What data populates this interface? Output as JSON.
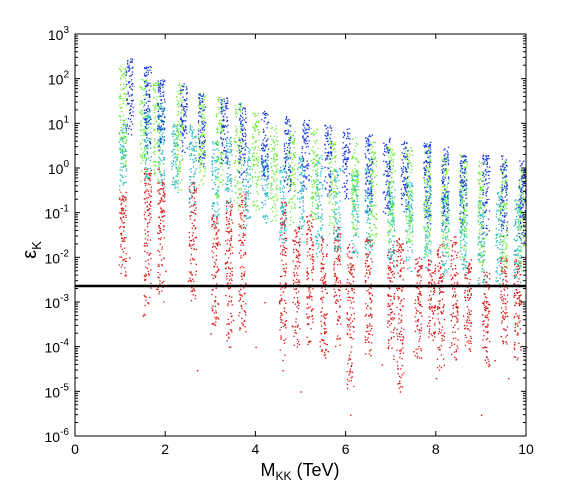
{
  "chart_data": {
    "type": "scatter",
    "title": "",
    "xlabel": {
      "main": "M",
      "sub": "KK",
      "rest": " (TeV)"
    },
    "ylabel": {
      "main": "ε",
      "sub": "K"
    },
    "xlim": [
      0,
      10
    ],
    "ylim": [
      1e-06,
      1000
    ],
    "yscale": "log",
    "grid": false,
    "legend": "none",
    "x_ticks": [
      0,
      2,
      4,
      6,
      8,
      10
    ],
    "x_tick_labels": [
      "0",
      "2",
      "4",
      "6",
      "8",
      "10"
    ],
    "y_ticks": [
      1e-06,
      1e-05,
      0.0001,
      0.001,
      0.01,
      0.1,
      1,
      10,
      100,
      1000
    ],
    "y_tick_labels": [
      {
        "base": "10",
        "exp": "-6"
      },
      {
        "base": "10",
        "exp": "-5"
      },
      {
        "base": "10",
        "exp": "-4"
      },
      {
        "base": "10",
        "exp": "-3"
      },
      {
        "base": "10",
        "exp": "-2"
      },
      {
        "base": "10",
        "exp": "-1"
      },
      {
        "base": "10",
        "exp": "0"
      },
      {
        "base": "10",
        "exp": "1"
      },
      {
        "base": "10",
        "exp": "2"
      },
      {
        "base": "10",
        "exp": "3"
      }
    ],
    "reference_line": {
      "y": 0.00228,
      "color": "#000000"
    },
    "series": [
      {
        "color": "#dd1111",
        "points": [
          [
            1.05,
            0.05
          ],
          [
            1.1,
            0.004
          ],
          [
            1.2,
            0.01
          ],
          [
            1.5,
            0.0005
          ],
          [
            1.6,
            0.001
          ],
          [
            1.8,
            0.002
          ],
          [
            2.0,
            0.005
          ],
          [
            2.5,
            0.003
          ],
          [
            2.7,
            3e-05
          ],
          [
            3.0,
            0.0002
          ],
          [
            3.2,
            0.02
          ],
          [
            3.5,
            0.0004
          ],
          [
            4.0,
            0.0001
          ],
          [
            4.2,
            0.001
          ],
          [
            4.6,
            3e-05
          ],
          [
            4.8,
            0.0003
          ],
          [
            5.0,
            1e-05
          ],
          [
            5.2,
            0.0008
          ],
          [
            5.6,
            8e-05
          ],
          [
            6.0,
            0.002
          ],
          [
            6.1,
            3e-06
          ],
          [
            6.5,
            0.0002
          ],
          [
            6.8,
            4e-05
          ],
          [
            7.0,
            0.0006
          ],
          [
            7.2,
            1e-05
          ],
          [
            7.5,
            8e-05
          ],
          [
            7.8,
            0.0003
          ],
          [
            8.0,
            2e-05
          ],
          [
            8.3,
            0.0001
          ],
          [
            8.6,
            0.0005
          ],
          [
            9.0,
            3e-06
          ],
          [
            9.3,
            5e-05
          ],
          [
            9.6,
            2e-05
          ],
          [
            9.8,
            0.0003
          ],
          [
            10.0,
            0.0001
          ]
        ],
        "columns": [
          [
            1.05,
            0.004,
            0.3
          ],
          [
            1.6,
            0.0005,
            1.0
          ],
          [
            1.9,
            0.001,
            1.0
          ],
          [
            2.6,
            0.001,
            0.5
          ],
          [
            3.1,
            0.0003,
            0.1
          ],
          [
            3.4,
            0.0001,
            0.2
          ],
          [
            3.7,
            0.0002,
            0.3
          ],
          [
            4.6,
            5e-05,
            0.2
          ],
          [
            4.9,
            0.0001,
            0.05
          ],
          [
            5.2,
            0.0001,
            0.1
          ],
          [
            5.5,
            5e-05,
            0.03
          ],
          [
            5.8,
            0.0001,
            0.05
          ],
          [
            6.1,
            1e-05,
            0.02
          ],
          [
            6.5,
            5e-05,
            0.03
          ],
          [
            7.0,
            5e-05,
            0.02
          ],
          [
            7.2,
            1e-05,
            0.03
          ],
          [
            7.6,
            5e-05,
            0.01
          ],
          [
            7.9,
            0.0001,
            0.01
          ],
          [
            8.1,
            3e-05,
            0.02
          ],
          [
            8.4,
            5e-05,
            0.03
          ],
          [
            8.7,
            8e-05,
            0.01
          ],
          [
            9.1,
            3e-05,
            0.005
          ],
          [
            9.5,
            0.0001,
            0.01
          ],
          [
            9.8,
            5e-05,
            0.01
          ]
        ]
      },
      {
        "color": "#22bbbb",
        "columns": [
          [
            1.05,
            0.3,
            10
          ],
          [
            1.6,
            0.5,
            20
          ],
          [
            1.9,
            0.3,
            30
          ],
          [
            2.2,
            0.2,
            10
          ],
          [
            2.6,
            0.1,
            10
          ],
          [
            3.1,
            0.05,
            5
          ],
          [
            3.4,
            0.1,
            5
          ],
          [
            3.8,
            0.05,
            3
          ],
          [
            4.2,
            0.05,
            3
          ],
          [
            4.6,
            0.02,
            2
          ],
          [
            5.0,
            0.02,
            2
          ],
          [
            5.4,
            0.01,
            2
          ],
          [
            5.8,
            0.01,
            1
          ],
          [
            6.2,
            0.01,
            1
          ],
          [
            6.5,
            0.01,
            1
          ],
          [
            7.0,
            0.005,
            0.5
          ],
          [
            7.4,
            0.005,
            0.5
          ],
          [
            7.8,
            0.005,
            0.5
          ],
          [
            8.2,
            0.003,
            0.3
          ],
          [
            8.6,
            0.003,
            0.5
          ],
          [
            9.0,
            0.002,
            0.2
          ],
          [
            9.4,
            0.002,
            0.3
          ],
          [
            9.8,
            0.002,
            0.2
          ]
        ]
      },
      {
        "color": "#66ee33",
        "columns": [
          [
            1.05,
            1,
            200
          ],
          [
            1.5,
            0.5,
            100
          ],
          [
            1.8,
            0.5,
            100
          ],
          [
            2.3,
            0.3,
            80
          ],
          [
            2.8,
            0.3,
            50
          ],
          [
            3.2,
            0.2,
            40
          ],
          [
            3.6,
            0.1,
            30
          ],
          [
            4.0,
            0.1,
            20
          ],
          [
            4.4,
            0.05,
            10
          ],
          [
            4.8,
            0.05,
            10
          ],
          [
            5.3,
            0.05,
            8
          ],
          [
            5.7,
            0.03,
            5
          ],
          [
            6.2,
            0.03,
            5
          ],
          [
            6.6,
            0.02,
            4
          ],
          [
            7.0,
            0.02,
            3
          ],
          [
            7.4,
            0.02,
            3
          ],
          [
            7.8,
            0.01,
            3
          ],
          [
            8.2,
            0.01,
            2
          ],
          [
            8.6,
            0.01,
            2
          ],
          [
            9.0,
            0.005,
            1.5
          ],
          [
            9.5,
            0.005,
            1.5
          ],
          [
            9.9,
            0.005,
            1
          ]
        ]
      },
      {
        "color": "#1133dd",
        "columns": [
          [
            1.2,
            5,
            300
          ],
          [
            1.6,
            3,
            200
          ],
          [
            1.9,
            2,
            100
          ],
          [
            2.4,
            2,
            80
          ],
          [
            2.8,
            1,
            50
          ],
          [
            3.3,
            1,
            40
          ],
          [
            3.7,
            0.5,
            30
          ],
          [
            4.2,
            0.5,
            20
          ],
          [
            4.7,
            0.3,
            15
          ],
          [
            5.1,
            0.3,
            12
          ],
          [
            5.6,
            0.2,
            10
          ],
          [
            6.0,
            0.2,
            8
          ],
          [
            6.5,
            0.1,
            6
          ],
          [
            6.9,
            0.1,
            5
          ],
          [
            7.3,
            0.1,
            4
          ],
          [
            7.8,
            0.05,
            4
          ],
          [
            8.2,
            0.05,
            3
          ],
          [
            8.6,
            0.05,
            2
          ],
          [
            9.1,
            0.03,
            2
          ],
          [
            9.5,
            0.03,
            2
          ],
          [
            9.9,
            0.02,
            1.5
          ]
        ]
      }
    ]
  }
}
